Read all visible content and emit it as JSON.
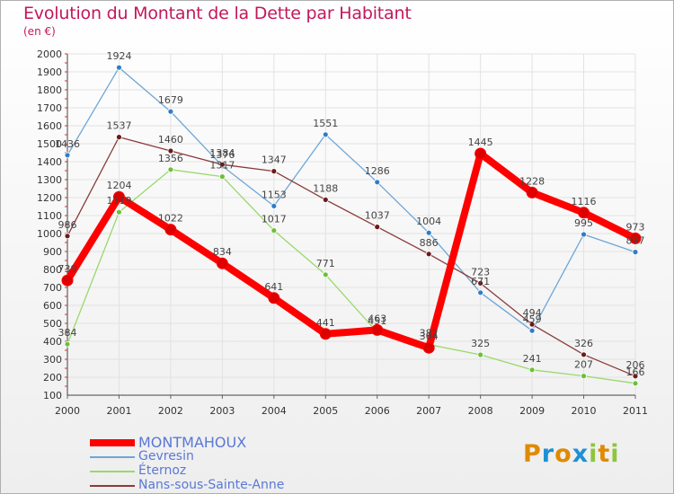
{
  "title": "Evolution du Montant de la Dette par Habitant",
  "subtitle": "(en €)",
  "logo": {
    "text": "Proxiti",
    "letters": [
      {
        "ch": "P",
        "color": "#e08a00"
      },
      {
        "ch": "r",
        "color": "#1e90d6"
      },
      {
        "ch": "o",
        "color": "#e08a00"
      },
      {
        "ch": "x",
        "color": "#1e90d6"
      },
      {
        "ch": "i",
        "color": "#8dc63f"
      },
      {
        "ch": "t",
        "color": "#e08a00"
      },
      {
        "ch": "i",
        "color": "#8dc63f"
      }
    ]
  },
  "chart_data": {
    "type": "line",
    "title": "Evolution du Montant de la Dette par Habitant",
    "subtitle": "(en €)",
    "xlabel": "",
    "ylabel": "",
    "x": [
      "2000",
      "2001",
      "2002",
      "2003",
      "2004",
      "2005",
      "2006",
      "2007",
      "2008",
      "2009",
      "2010",
      "2011"
    ],
    "ylim": [
      100,
      2000
    ],
    "yticks": [
      100,
      200,
      300,
      400,
      500,
      600,
      700,
      800,
      900,
      1000,
      1100,
      1200,
      1300,
      1400,
      1500,
      1600,
      1700,
      1800,
      1900,
      2000
    ],
    "grid": true,
    "legend": "bottom-left",
    "series": [
      {
        "name": "MONTMAHOUX",
        "color": "#ff0000",
        "marker": "#dd0000",
        "values": [
          739,
          1204,
          1022,
          834,
          641,
          441,
          463,
          364,
          1445,
          1228,
          1116,
          973
        ]
      },
      {
        "name": "Gevresin",
        "color": "#6ea6d6",
        "marker": "#2f7dc9",
        "values": [
          1436,
          1924,
          1679,
          1376,
          1153,
          1551,
          1286,
          1004,
          671,
          459,
          995,
          897
        ]
      },
      {
        "name": "Éternoz",
        "color": "#9ad86c",
        "marker": "#6dbf3a",
        "values": [
          384,
          1119,
          1356,
          1317,
          1017,
          771,
          451,
          382,
          325,
          241,
          207,
          166
        ]
      },
      {
        "name": "Nans-sous-Sainte-Anne",
        "color": "#8b3a3a",
        "marker": "#6b1a1a",
        "values": [
          986,
          1537,
          1460,
          1384,
          1347,
          1188,
          1037,
          886,
          723,
          494,
          326,
          206
        ]
      }
    ]
  }
}
